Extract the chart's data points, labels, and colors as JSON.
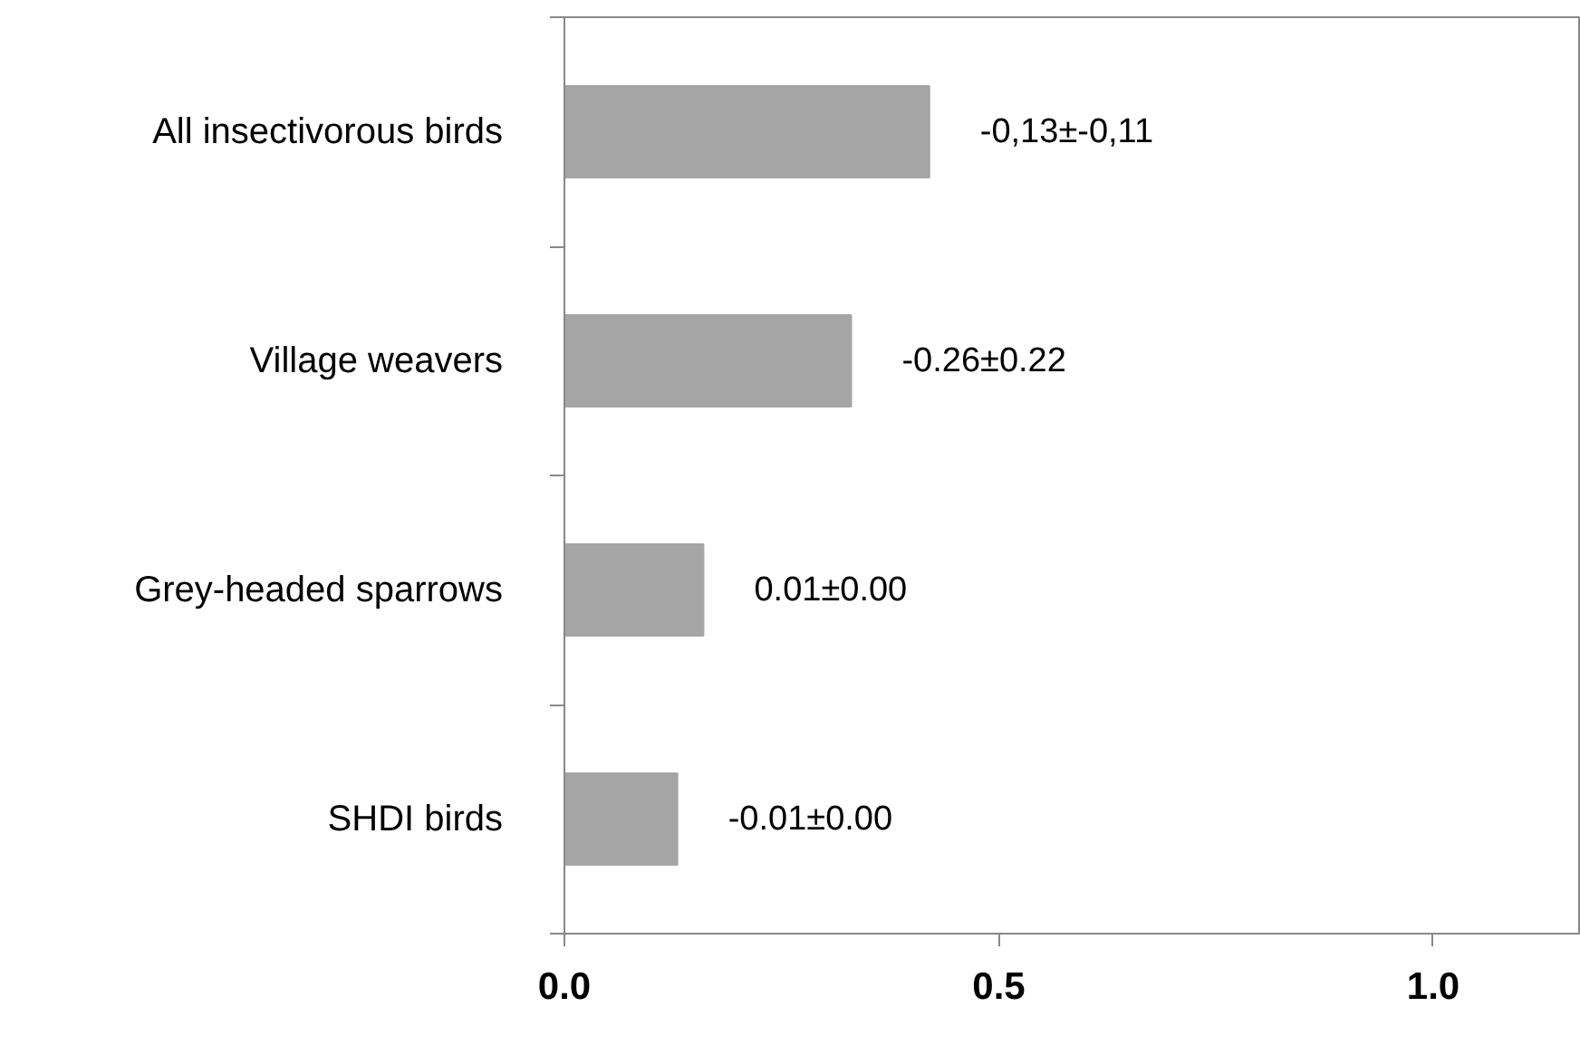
{
  "chart_data": {
    "type": "bar",
    "orientation": "horizontal",
    "categories": [
      "All insectivorous birds",
      "Village weavers",
      "Grey-headed sparrows",
      "SHDI birds"
    ],
    "values": [
      0.42,
      0.33,
      0.16,
      0.13
    ],
    "color": "#a5a5a5",
    "annotations": [
      {
        "text": "-0,13±-0,11",
        "x": 0.42,
        "y": "All insectivorous birds"
      },
      {
        "text": "-0.26±0.22",
        "x": 0.33,
        "y": "Village weavers"
      },
      {
        "text": "0.01±0.00",
        "x": 0.16,
        "y": "Grey-headed sparrows"
      },
      {
        "text": "-0.01±0.00",
        "x": 0.13,
        "y": "SHDI birds"
      }
    ],
    "xlim": [
      0,
      1.17
    ],
    "xticks": [
      {
        "value": 0,
        "label": "0.0"
      },
      {
        "value": 0.5,
        "label": "0.5"
      },
      {
        "value": 1,
        "label": "1.0"
      }
    ]
  }
}
